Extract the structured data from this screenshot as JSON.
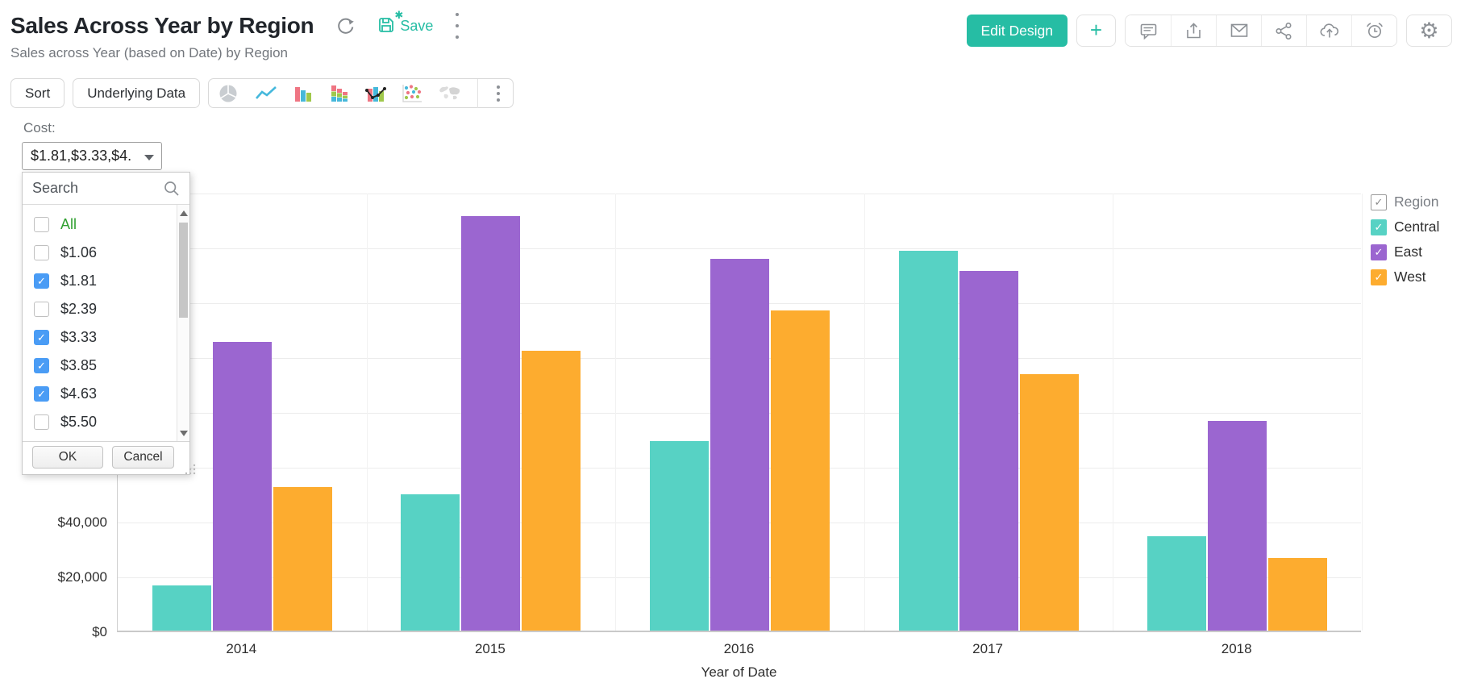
{
  "header": {
    "title": "Sales Across Year by Region",
    "subtitle": "Sales across Year (based on Date) by Region",
    "save_label": "Save",
    "edit_design_label": "Edit Design",
    "title_icons": [
      "refresh-icon",
      "save-icon",
      "more-options-icon"
    ],
    "action_icons": [
      "plus-icon",
      "comment-icon",
      "export-icon",
      "email-icon",
      "share-icon",
      "cloud-upload-icon",
      "schedule-alert-icon",
      "settings-gear-icon"
    ]
  },
  "toolbar": {
    "sort_label": "Sort",
    "underlying_data_label": "Underlying Data",
    "chart_type_icons": [
      "pie-chart-icon",
      "line-chart-icon",
      "bar-chart-icon",
      "stacked-bar-chart-icon",
      "combo-chart-icon",
      "scatter-chart-icon",
      "map-chart-icon",
      "more-chart-types-icon"
    ]
  },
  "filter": {
    "label": "Cost:",
    "value": "$1.81,$3.33,$4.",
    "search_placeholder": "Search",
    "options": [
      {
        "label": "All",
        "checked": false,
        "accent": true
      },
      {
        "label": "$1.06",
        "checked": false
      },
      {
        "label": "$1.81",
        "checked": true
      },
      {
        "label": "$2.39",
        "checked": false
      },
      {
        "label": "$3.33",
        "checked": true
      },
      {
        "label": "$3.85",
        "checked": true
      },
      {
        "label": "$4.63",
        "checked": true
      },
      {
        "label": "$5.50",
        "checked": false
      }
    ],
    "ok_label": "OK",
    "cancel_label": "Cancel"
  },
  "legend": {
    "title": "Region",
    "items": [
      {
        "label": "Central",
        "color": "#57d2c4",
        "checked": true
      },
      {
        "label": "East",
        "color": "#9b66d0",
        "checked": true
      },
      {
        "label": "West",
        "color": "#fdac2f",
        "checked": true
      }
    ]
  },
  "chart_data": {
    "type": "bar",
    "title": "Sales Across Year by Region",
    "xlabel": "Year of Date",
    "ylabel": "",
    "categories": [
      "2014",
      "2015",
      "2016",
      "2017",
      "2018"
    ],
    "series": [
      {
        "name": "Central",
        "color": "#57d2c4",
        "values": [
          16500,
          49700,
          69000,
          138500,
          34500
        ]
      },
      {
        "name": "East",
        "color": "#9b66d0",
        "values": [
          105300,
          151200,
          135500,
          131100,
          76600
        ]
      },
      {
        "name": "West",
        "color": "#fdac2f",
        "values": [
          52500,
          102200,
          116900,
          93400,
          26600
        ]
      }
    ],
    "ylim": [
      0,
      160000
    ],
    "ytick_step": 20000,
    "ytick_format": "$#,##0",
    "grid": true,
    "legend_position": "right"
  },
  "colors": {
    "accent_teal": "#26bda4",
    "checkbox_blue": "#4a9cf5",
    "all_option_green": "#30a030",
    "bar_central": "#57d2c4",
    "bar_east": "#9b66d0",
    "bar_west": "#fdac2f",
    "gridline": "#ececec",
    "axis_line": "#c9c9c9"
  }
}
